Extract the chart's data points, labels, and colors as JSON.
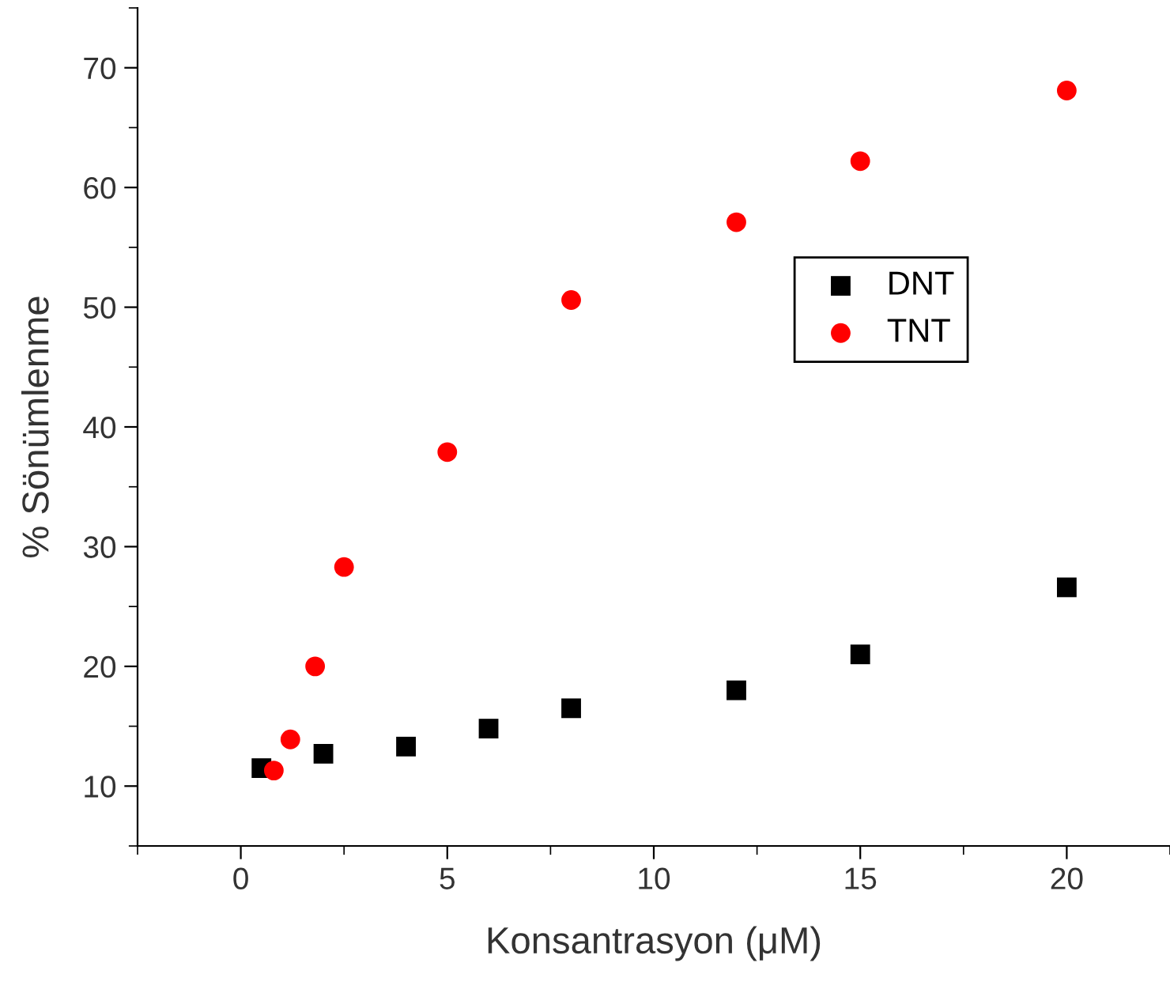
{
  "chart_data": {
    "type": "scatter",
    "xlabel": "Konsantrasyon (μM)",
    "ylabel": "% Sönümlenme",
    "xlim": [
      -2.5,
      22.5
    ],
    "ylim": [
      5,
      75
    ],
    "xticks": [
      {
        "value": -2.5,
        "label": null
      },
      0,
      {
        "value": 2.5,
        "label": null
      },
      5,
      {
        "value": 7.5,
        "label": null
      },
      10,
      {
        "value": 12.5,
        "label": null
      },
      15,
      {
        "value": 17.5,
        "label": null
      },
      20,
      {
        "value": 22.5,
        "label": null
      }
    ],
    "yticks": [
      {
        "value": 5,
        "label": null
      },
      10,
      {
        "value": 15,
        "label": null
      },
      20,
      {
        "value": 25,
        "label": null
      },
      30,
      {
        "value": 35,
        "label": null
      },
      40,
      {
        "value": 45,
        "label": null
      },
      50,
      {
        "value": 55,
        "label": null
      },
      60,
      {
        "value": 65,
        "label": null
      },
      70,
      {
        "value": 75,
        "label": null
      }
    ],
    "legend": "center right",
    "grid": false,
    "series": [
      {
        "name": "DNT",
        "color": "#000000",
        "marker": "square",
        "x": [
          0.5,
          2,
          4,
          6,
          8,
          12,
          15,
          20
        ],
        "values": [
          11.5,
          12.7,
          13.3,
          14.8,
          16.5,
          18,
          21,
          26.6
        ]
      },
      {
        "name": "TNT",
        "color": "#ff0000",
        "marker": "circle",
        "x": [
          0.8,
          1.2,
          1.8,
          2.5,
          5,
          8,
          12,
          15,
          20
        ],
        "values": [
          11.3,
          13.9,
          20,
          28.3,
          37.9,
          50.6,
          57.1,
          62.2,
          68.1
        ]
      }
    ]
  }
}
